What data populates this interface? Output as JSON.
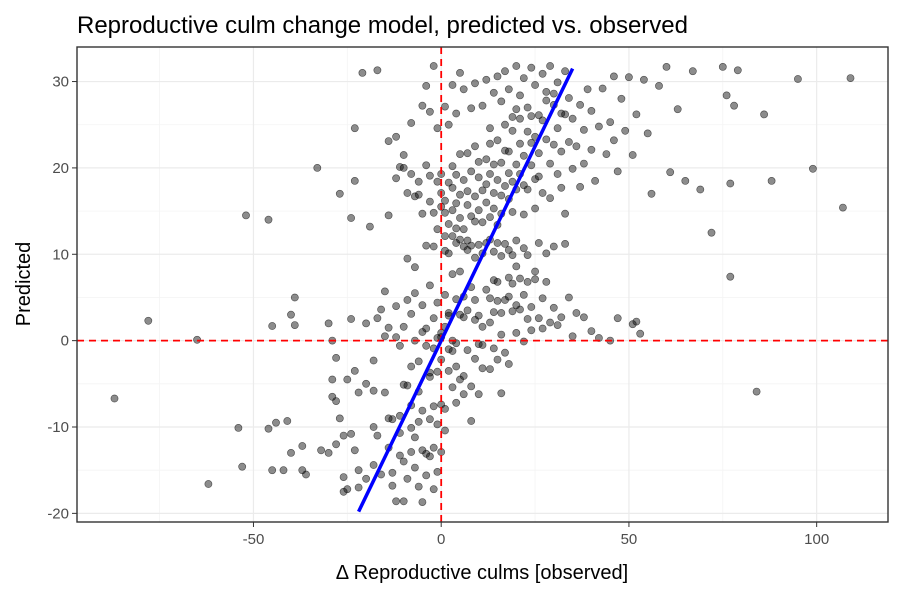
{
  "chart_data": {
    "type": "scatter",
    "title": "Reproductive culm change model, predicted vs. observed",
    "xlabel": "Δ Reproductive culms [observed]",
    "ylabel": "Predicted",
    "xlim": [
      -97,
      119
    ],
    "ylim": [
      -21,
      34
    ],
    "xticks": [
      -50,
      0,
      50,
      100
    ],
    "yticks": [
      -20,
      -10,
      0,
      10,
      20,
      30
    ],
    "xtick_labels": [
      "-50",
      "0",
      "50",
      "100"
    ],
    "ytick_labels": [
      "-20",
      "-10",
      "0",
      "10",
      "20",
      "30"
    ],
    "grid": true,
    "point_color": "#000000",
    "point_opacity": 0.45,
    "reference_lines": {
      "color": "#ff0000",
      "style": "dashed",
      "x": 0,
      "y": 0
    },
    "fit_line": {
      "color": "#0000ff",
      "slope": 0.9,
      "intercept": 0,
      "x_range": [
        -22,
        35
      ]
    },
    "points": [
      [
        -87,
        -6.7
      ],
      [
        -78,
        2.3
      ],
      [
        -65,
        0.1
      ],
      [
        -62,
        -16.6
      ],
      [
        -54,
        -10.1
      ],
      [
        -53,
        -14.6
      ],
      [
        -52,
        14.5
      ],
      [
        -46,
        14
      ],
      [
        -46,
        -10.2
      ],
      [
        -45,
        -15
      ],
      [
        -45,
        1.7
      ],
      [
        -44,
        -9.5
      ],
      [
        -42,
        -15
      ],
      [
        -41,
        -9.3
      ],
      [
        -40,
        -13
      ],
      [
        -40,
        3
      ],
      [
        -39,
        5
      ],
      [
        -39,
        1.8
      ],
      [
        -37,
        -12.2
      ],
      [
        -37,
        -15
      ],
      [
        -36,
        -15.5
      ],
      [
        -33,
        20
      ],
      [
        -32,
        -12.7
      ],
      [
        -30,
        -13
      ],
      [
        -30,
        2
      ],
      [
        -29,
        -4.5
      ],
      [
        -29,
        -6.5
      ],
      [
        -29,
        0
      ],
      [
        -28,
        -7
      ],
      [
        -28,
        -2
      ],
      [
        -28,
        -12
      ],
      [
        -27,
        17
      ],
      [
        -27,
        -9
      ],
      [
        -26,
        -11
      ],
      [
        -26,
        -15.8
      ],
      [
        -26,
        -17.5
      ],
      [
        -25,
        -4.5
      ],
      [
        -25,
        -17.2
      ],
      [
        -24,
        2.5
      ],
      [
        -24,
        -10.8
      ],
      [
        -24,
        14.2
      ],
      [
        -23,
        18.5
      ],
      [
        -23,
        -12.7
      ],
      [
        -23,
        -3.5
      ],
      [
        -22,
        -15
      ],
      [
        -22,
        -17
      ],
      [
        -22,
        -6
      ],
      [
        -21,
        31
      ],
      [
        -20,
        2
      ],
      [
        -20,
        -16
      ],
      [
        -20,
        -5
      ],
      [
        -19,
        13.2
      ],
      [
        -18,
        -14.4
      ],
      [
        -18,
        -10
      ],
      [
        -18,
        -2.3
      ],
      [
        -18,
        -5.8
      ],
      [
        -17,
        2.6
      ],
      [
        -17,
        -11
      ],
      [
        -16,
        3.6
      ],
      [
        -16,
        -15.5
      ],
      [
        -15,
        -6
      ],
      [
        -15,
        0.5
      ],
      [
        -15,
        5.7
      ],
      [
        -14,
        -9
      ],
      [
        -14,
        1.5
      ],
      [
        -14,
        -12.4
      ],
      [
        -13,
        -9.1
      ],
      [
        -13,
        -15.3
      ],
      [
        -13,
        -16.8
      ],
      [
        -12,
        -18.6
      ],
      [
        -12,
        4
      ],
      [
        -12,
        0.4
      ],
      [
        -11,
        -8.7
      ],
      [
        -11,
        -13.3
      ],
      [
        -11,
        -10.7
      ],
      [
        -11,
        -0.6
      ],
      [
        -10,
        1.6
      ],
      [
        -10,
        -5.1
      ],
      [
        -10,
        -14
      ],
      [
        -10,
        20
      ],
      [
        -10,
        -18.6
      ],
      [
        -9,
        -16
      ],
      [
        -9,
        -5.2
      ],
      [
        -9,
        4.7
      ],
      [
        -8,
        -7.5
      ],
      [
        -8,
        -10.1
      ],
      [
        -8,
        -3
      ],
      [
        -8,
        3.1
      ],
      [
        -8,
        -12.9
      ],
      [
        -7,
        0
      ],
      [
        -7,
        -14.7
      ],
      [
        -7,
        -11.2
      ],
      [
        -7,
        5.5
      ],
      [
        -7,
        8.5
      ],
      [
        -6,
        -2.4
      ],
      [
        -6,
        -9.4
      ],
      [
        -6,
        -16.9
      ],
      [
        -6,
        -5.9
      ],
      [
        -5,
        -12.7
      ],
      [
        -5,
        1
      ],
      [
        -5,
        4.1
      ],
      [
        -5,
        -18.7
      ],
      [
        -5,
        -8.1
      ],
      [
        -4,
        -13.1
      ],
      [
        -4,
        -0.6
      ],
      [
        -4,
        -15.6
      ],
      [
        -4,
        1.4
      ],
      [
        -4,
        11
      ],
      [
        -3,
        -4.2
      ],
      [
        -3,
        -9.1
      ],
      [
        -3,
        -3.7
      ],
      [
        -3,
        6.4
      ],
      [
        -3,
        -13.4
      ],
      [
        -2,
        -12.4
      ],
      [
        -2,
        2.6
      ],
      [
        -2,
        -7.6
      ],
      [
        -2,
        -17.2
      ],
      [
        -2,
        -0.9
      ],
      [
        -1,
        0.3
      ],
      [
        -1,
        -3.6
      ],
      [
        -1,
        -9.7
      ],
      [
        -1,
        4.4
      ],
      [
        -1,
        -15.2
      ],
      [
        0,
        0.4
      ],
      [
        0,
        -2.2
      ],
      [
        0,
        -7.4
      ],
      [
        0,
        0.9
      ],
      [
        0,
        -12.9
      ],
      [
        1,
        1.6
      ],
      [
        1,
        -7.9
      ],
      [
        1,
        5.3
      ],
      [
        1,
        -10.4
      ],
      [
        2,
        2.9
      ],
      [
        2,
        -3.5
      ],
      [
        2,
        -1
      ],
      [
        2,
        3.2
      ],
      [
        3,
        -1.2
      ],
      [
        3,
        7.7
      ],
      [
        3,
        -5.4
      ],
      [
        3,
        0
      ],
      [
        4,
        -7.2
      ],
      [
        4,
        -3
      ],
      [
        4,
        -0.3
      ],
      [
        4,
        4.8
      ],
      [
        5,
        8
      ],
      [
        5,
        -4.5
      ],
      [
        5,
        3
      ],
      [
        6,
        -4.1
      ],
      [
        6,
        5.1
      ],
      [
        6,
        -6.2
      ],
      [
        6,
        2.7
      ],
      [
        7,
        10.5
      ],
      [
        7,
        -1.1
      ],
      [
        7,
        3.5
      ],
      [
        8,
        6.2
      ],
      [
        8,
        -5.3
      ],
      [
        8,
        -9.3
      ],
      [
        9,
        2.4
      ],
      [
        9,
        4.7
      ],
      [
        9,
        -2.1
      ],
      [
        10,
        2.9
      ],
      [
        10,
        -0.4
      ],
      [
        10,
        -6.2
      ],
      [
        11,
        -0.5
      ],
      [
        11,
        -3.2
      ],
      [
        11,
        1.6
      ],
      [
        12,
        11.3
      ],
      [
        12,
        5.9
      ],
      [
        13,
        4.9
      ],
      [
        13,
        2.1
      ],
      [
        13,
        -3.3
      ],
      [
        14,
        3.3
      ],
      [
        14,
        -0.9
      ],
      [
        14,
        7
      ],
      [
        15,
        4.6
      ],
      [
        15,
        -2.2
      ],
      [
        15,
        6.8
      ],
      [
        16,
        3.2
      ],
      [
        16,
        0.7
      ],
      [
        16,
        -6.1
      ],
      [
        17,
        4.7
      ],
      [
        17,
        -1.4
      ],
      [
        18,
        7.3
      ],
      [
        18,
        5.1
      ],
      [
        18,
        -2.7
      ],
      [
        19,
        3.4
      ],
      [
        19,
        6.6
      ],
      [
        20,
        4.1
      ],
      [
        20,
        0.9
      ],
      [
        20,
        8.6
      ],
      [
        21,
        3.6
      ],
      [
        21,
        7.2
      ],
      [
        22,
        5.3
      ],
      [
        22,
        -0.1
      ],
      [
        23,
        6.8
      ],
      [
        23,
        2.5
      ],
      [
        24,
        3.9
      ],
      [
        24,
        1.2
      ],
      [
        25,
        7.1
      ],
      [
        25,
        8
      ],
      [
        26,
        2.6
      ],
      [
        27,
        4.9
      ],
      [
        27,
        1.4
      ],
      [
        28,
        6.8
      ],
      [
        29,
        2.1
      ],
      [
        30,
        3.8
      ],
      [
        31,
        1.8
      ],
      [
        32,
        2.7
      ],
      [
        34,
        5
      ],
      [
        35,
        0.5
      ],
      [
        36,
        3.2
      ],
      [
        38,
        2.7
      ],
      [
        40,
        1.1
      ],
      [
        42,
        0.3
      ],
      [
        45,
        0
      ],
      [
        47,
        2.6
      ],
      [
        51,
        1.9
      ],
      [
        52,
        2.2
      ],
      [
        53,
        0.8
      ],
      [
        -2,
        10.9
      ],
      [
        -1,
        12.9
      ],
      [
        0,
        15.5
      ],
      [
        0,
        17.1
      ],
      [
        0,
        19.3
      ],
      [
        1,
        12.1
      ],
      [
        1,
        14.8
      ],
      [
        1,
        16.2
      ],
      [
        2,
        18.3
      ],
      [
        2,
        13.5
      ],
      [
        3,
        15.1
      ],
      [
        3,
        20.2
      ],
      [
        3,
        17.7
      ],
      [
        4,
        13
      ],
      [
        4,
        19.2
      ],
      [
        4,
        15.9
      ],
      [
        5,
        11.7
      ],
      [
        5,
        16.9
      ],
      [
        5,
        21.6
      ],
      [
        5,
        14.2
      ],
      [
        6,
        18.6
      ],
      [
        6,
        12.9
      ],
      [
        7,
        15.7
      ],
      [
        7,
        17.3
      ],
      [
        7,
        21.7
      ],
      [
        8,
        14.4
      ],
      [
        8,
        19.6
      ],
      [
        8,
        11
      ],
      [
        9,
        16.7
      ],
      [
        9,
        22.5
      ],
      [
        9,
        13.8
      ],
      [
        10,
        18.9
      ],
      [
        10,
        15.1
      ],
      [
        10,
        20.7
      ],
      [
        11,
        17.4
      ],
      [
        11,
        13.7
      ],
      [
        12,
        18.1
      ],
      [
        12,
        16
      ],
      [
        12,
        21
      ],
      [
        13,
        14.3
      ],
      [
        13,
        19.3
      ],
      [
        13,
        22.8
      ],
      [
        14,
        17.1
      ],
      [
        14,
        15.3
      ],
      [
        14,
        20.4
      ],
      [
        15,
        23.2
      ],
      [
        15,
        18.6
      ],
      [
        15,
        13.4
      ],
      [
        16,
        16.8
      ],
      [
        16,
        20.6
      ],
      [
        16,
        14.7
      ],
      [
        17,
        22
      ],
      [
        17,
        17.9
      ],
      [
        17,
        25
      ],
      [
        18,
        19.4
      ],
      [
        18,
        16.4
      ],
      [
        18,
        21.9
      ],
      [
        19,
        24.3
      ],
      [
        19,
        18.4
      ],
      [
        19,
        14.9
      ],
      [
        20,
        20.4
      ],
      [
        20,
        26.8
      ],
      [
        20,
        17.5
      ],
      [
        21,
        22.8
      ],
      [
        21,
        19.3
      ],
      [
        21,
        25.7
      ],
      [
        22,
        18
      ],
      [
        22,
        21.4
      ],
      [
        22,
        14.6
      ],
      [
        23,
        24.2
      ],
      [
        23,
        17.5
      ],
      [
        24,
        22.9
      ],
      [
        24,
        20.3
      ],
      [
        24,
        26
      ],
      [
        25,
        18.7
      ],
      [
        25,
        15.3
      ],
      [
        25,
        23.6
      ],
      [
        26,
        21.7
      ],
      [
        26,
        19
      ],
      [
        27,
        25.5
      ],
      [
        27,
        17.1
      ],
      [
        28,
        23.3
      ],
      [
        28,
        27.8
      ],
      [
        29,
        20.5
      ],
      [
        29,
        16.5
      ],
      [
        30,
        22.7
      ],
      [
        30,
        28.6
      ],
      [
        31,
        19.3
      ],
      [
        31,
        24.6
      ],
      [
        32,
        21.9
      ],
      [
        32,
        17.7
      ],
      [
        33,
        26.2
      ],
      [
        33,
        14.7
      ],
      [
        34,
        23
      ],
      [
        34,
        28.1
      ],
      [
        35,
        19.9
      ],
      [
        35,
        25.7
      ],
      [
        36,
        22.5
      ],
      [
        37,
        27.3
      ],
      [
        37,
        17.8
      ],
      [
        38,
        24.4
      ],
      [
        38,
        20.5
      ],
      [
        39,
        29.1
      ],
      [
        40,
        22.1
      ],
      [
        40,
        26.6
      ],
      [
        41,
        18.5
      ],
      [
        42,
        24.8
      ],
      [
        43,
        29.2
      ],
      [
        44,
        21.6
      ],
      [
        45,
        25.3
      ],
      [
        46,
        30.6
      ],
      [
        46,
        23.2
      ],
      [
        47,
        19.6
      ],
      [
        48,
        28
      ],
      [
        49,
        24.3
      ],
      [
        50,
        30.5
      ],
      [
        51,
        21.5
      ],
      [
        52,
        26.2
      ],
      [
        54,
        30.2
      ],
      [
        55,
        24
      ],
      [
        56,
        17
      ],
      [
        58,
        29.5
      ],
      [
        60,
        31.7
      ],
      [
        61,
        19.5
      ],
      [
        63,
        26.8
      ],
      [
        65,
        18.5
      ],
      [
        67,
        31.2
      ],
      [
        69,
        17.5
      ],
      [
        72,
        12.5
      ],
      [
        75,
        31.7
      ],
      [
        76,
        28.4
      ],
      [
        77,
        18.2
      ],
      [
        77,
        7.4
      ],
      [
        78,
        27.2
      ],
      [
        79,
        31.3
      ],
      [
        84,
        -5.9
      ],
      [
        86,
        26.2
      ],
      [
        88,
        18.5
      ],
      [
        95,
        30.3
      ],
      [
        99,
        19.9
      ],
      [
        107,
        15.4
      ],
      [
        109,
        30.4
      ],
      [
        -23,
        24.6
      ],
      [
        -17,
        31.3
      ],
      [
        -14,
        23.1
      ],
      [
        -12,
        23.6
      ],
      [
        -10,
        21.5
      ],
      [
        -8,
        25.2
      ],
      [
        -6,
        16.9
      ],
      [
        -5,
        27.2
      ],
      [
        -4,
        29.5
      ],
      [
        -3,
        26.5
      ],
      [
        -2,
        31.8
      ],
      [
        -1,
        24.6
      ],
      [
        1,
        27.1
      ],
      [
        2,
        25
      ],
      [
        3,
        29.6
      ],
      [
        4,
        26.3
      ],
      [
        5,
        31
      ],
      [
        6,
        29.1
      ],
      [
        8,
        26.9
      ],
      [
        9,
        29.8
      ],
      [
        11,
        27.2
      ],
      [
        12,
        30.2
      ],
      [
        13,
        24.6
      ],
      [
        14,
        28.7
      ],
      [
        15,
        30.6
      ],
      [
        16,
        27.7
      ],
      [
        17,
        31.2
      ],
      [
        18,
        29.1
      ],
      [
        19,
        25.9
      ],
      [
        20,
        31.8
      ],
      [
        21,
        28.4
      ],
      [
        22,
        30.4
      ],
      [
        23,
        27
      ],
      [
        24,
        31.6
      ],
      [
        25,
        29.6
      ],
      [
        26,
        26.1
      ],
      [
        27,
        30.9
      ],
      [
        28,
        28.8
      ],
      [
        29,
        31.8
      ],
      [
        30,
        27.3
      ],
      [
        31,
        29.9
      ],
      [
        32,
        26.3
      ],
      [
        33,
        31.2
      ],
      [
        -14,
        14.5
      ],
      [
        -12,
        18.8
      ],
      [
        -11,
        20.1
      ],
      [
        -9,
        17.1
      ],
      [
        -9,
        9.5
      ],
      [
        -8,
        19.3
      ],
      [
        -7,
        16.7
      ],
      [
        -6,
        18.4
      ],
      [
        -5,
        14.7
      ],
      [
        -4,
        20.3
      ],
      [
        -3,
        16.1
      ],
      [
        -3,
        19.1
      ],
      [
        -2,
        14.8
      ],
      [
        -1,
        18.4
      ],
      [
        1,
        10.4
      ],
      [
        2,
        10.1
      ],
      [
        3,
        12.1
      ],
      [
        4,
        11.3
      ],
      [
        6,
        10.9
      ],
      [
        7,
        11.6
      ],
      [
        9,
        9.6
      ],
      [
        10,
        11.1
      ],
      [
        11,
        10.1
      ],
      [
        13,
        11.7
      ],
      [
        14,
        10.3
      ],
      [
        15,
        11.3
      ],
      [
        16,
        9.8
      ],
      [
        17,
        11.2
      ],
      [
        18,
        10.5
      ],
      [
        19,
        9.9
      ],
      [
        20,
        11.6
      ],
      [
        22,
        10.7
      ],
      [
        23,
        9.9
      ],
      [
        26,
        11.3
      ],
      [
        28,
        10.1
      ],
      [
        30,
        10.9
      ],
      [
        33,
        11.2
      ]
    ]
  }
}
